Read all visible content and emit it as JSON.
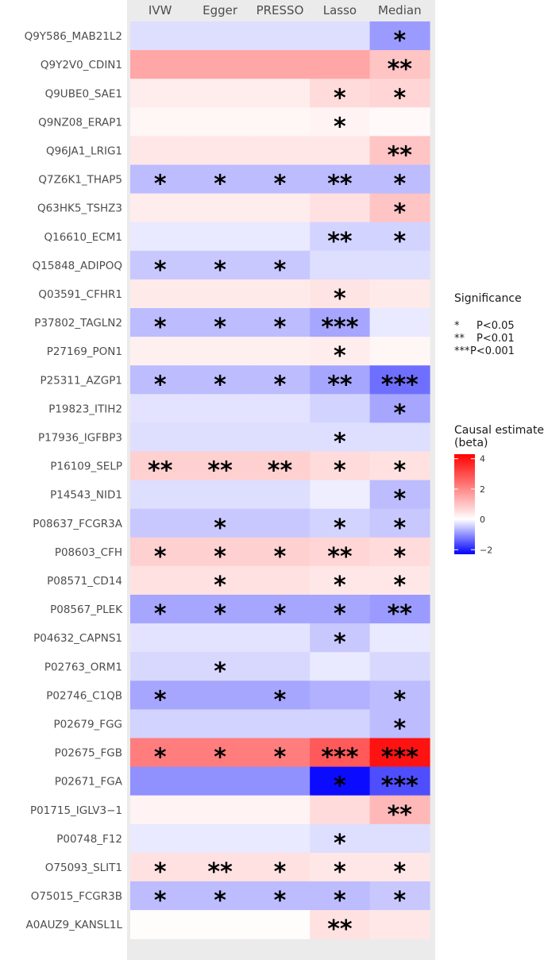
{
  "chart_data": {
    "type": "heatmap",
    "columns": [
      "IVW",
      "Egger",
      "PRESSO",
      "Lasso",
      "Median"
    ],
    "rows": [
      "Q9Y586_MAB21L2",
      "Q9Y2V0_CDIN1",
      "Q9UBE0_SAE1",
      "Q9NZ08_ERAP1",
      "Q96JA1_LRIG1",
      "Q7Z6K1_THAP5",
      "Q63HK5_TSHZ3",
      "Q16610_ECM1",
      "Q15848_ADIPOQ",
      "Q03591_CFHR1",
      "P37802_TAGLN2",
      "P27169_PON1",
      "P25311_AZGP1",
      "P19823_ITIH2",
      "P17936_IGFBP3",
      "P16109_SELP",
      "P14543_NID1",
      "P08637_FCGR3A",
      "P08603_CFH",
      "P08571_CD14",
      "P08567_PLEK",
      "P04632_CAPNS1",
      "P02763_ORM1",
      "P02746_C1QB",
      "P02679_FGG",
      "P02675_FGB",
      "P02671_FGA",
      "P01715_IGLV3−1",
      "P00748_F12",
      "O75093_SLIT1",
      "O75015_FCGR3B",
      "A0AUZ9_KANSL1L"
    ],
    "values": [
      [
        -0.3,
        -0.3,
        -0.3,
        -0.3,
        -0.9
      ],
      [
        1.5,
        1.5,
        1.5,
        1.5,
        1.0
      ],
      [
        0.3,
        0.3,
        0.3,
        0.6,
        0.7
      ],
      [
        0.15,
        0.15,
        0.15,
        0.2,
        0.1
      ],
      [
        0.4,
        0.4,
        0.4,
        0.4,
        1.0
      ],
      [
        -0.6,
        -0.6,
        -0.6,
        -0.6,
        -0.6
      ],
      [
        0.3,
        0.3,
        0.3,
        0.5,
        1.0
      ],
      [
        -0.2,
        -0.2,
        -0.2,
        -0.4,
        -0.4
      ],
      [
        -0.5,
        -0.5,
        -0.5,
        -0.3,
        -0.3
      ],
      [
        0.35,
        0.35,
        0.35,
        0.45,
        0.35
      ],
      [
        -0.6,
        -0.6,
        -0.6,
        -0.8,
        -0.2
      ],
      [
        0.25,
        0.25,
        0.25,
        0.3,
        0.15
      ],
      [
        -0.6,
        -0.6,
        -0.6,
        -0.8,
        -1.3
      ],
      [
        -0.25,
        -0.25,
        -0.25,
        -0.4,
        -0.8
      ],
      [
        -0.3,
        -0.3,
        -0.3,
        -0.3,
        -0.3
      ],
      [
        0.8,
        0.8,
        0.8,
        0.6,
        0.5
      ],
      [
        -0.3,
        -0.3,
        -0.3,
        -0.15,
        -0.6
      ],
      [
        -0.5,
        -0.5,
        -0.5,
        -0.4,
        -0.5
      ],
      [
        0.8,
        0.8,
        0.8,
        0.7,
        0.6
      ],
      [
        0.5,
        0.5,
        0.5,
        0.4,
        0.4
      ],
      [
        -0.8,
        -0.8,
        -0.8,
        -0.8,
        -0.9
      ],
      [
        -0.25,
        -0.25,
        -0.25,
        -0.5,
        -0.2
      ],
      [
        -0.35,
        -0.35,
        -0.35,
        -0.2,
        -0.35
      ],
      [
        -0.8,
        -0.8,
        -0.8,
        -0.7,
        -0.6
      ],
      [
        -0.4,
        -0.4,
        -0.4,
        -0.4,
        -0.6
      ],
      [
        2.2,
        2.2,
        2.2,
        2.8,
        4.0
      ],
      [
        -1.0,
        -1.0,
        -1.0,
        -2.2,
        -1.6
      ],
      [
        0.2,
        0.2,
        0.2,
        0.6,
        1.2
      ],
      [
        -0.2,
        -0.2,
        -0.2,
        -0.3,
        -0.3
      ],
      [
        0.5,
        0.5,
        0.5,
        0.4,
        0.4
      ],
      [
        -0.6,
        -0.6,
        -0.6,
        -0.6,
        -0.5
      ],
      [
        0.05,
        0.05,
        0.05,
        0.5,
        0.4
      ]
    ],
    "significance": [
      [
        "",
        "",
        "",
        "",
        "*"
      ],
      [
        "",
        "",
        "",
        "",
        "**"
      ],
      [
        "",
        "",
        "",
        "*",
        "*"
      ],
      [
        "",
        "",
        "",
        "*",
        ""
      ],
      [
        "",
        "",
        "",
        "",
        "**"
      ],
      [
        "*",
        "*",
        "*",
        "**",
        "*"
      ],
      [
        "",
        "",
        "",
        "",
        "*"
      ],
      [
        "",
        "",
        "",
        "**",
        "*"
      ],
      [
        "*",
        "*",
        "*",
        "",
        ""
      ],
      [
        "",
        "",
        "",
        "*",
        ""
      ],
      [
        "*",
        "*",
        "*",
        "***",
        ""
      ],
      [
        "",
        "",
        "",
        "*",
        ""
      ],
      [
        "*",
        "*",
        "*",
        "**",
        "***"
      ],
      [
        "",
        "",
        "",
        "",
        "*"
      ],
      [
        "",
        "",
        "",
        "*",
        ""
      ],
      [
        "**",
        "**",
        "**",
        "*",
        "*"
      ],
      [
        "",
        "",
        "",
        "",
        "*"
      ],
      [
        "",
        "*",
        "",
        "*",
        "*"
      ],
      [
        "*",
        "*",
        "*",
        "**",
        "*"
      ],
      [
        "",
        "*",
        "",
        "*",
        "*"
      ],
      [
        "*",
        "*",
        "*",
        "*",
        "**"
      ],
      [
        "",
        "",
        "",
        "*",
        ""
      ],
      [
        "",
        "*",
        "",
        "",
        ""
      ],
      [
        "*",
        "",
        "*",
        "",
        "*"
      ],
      [
        "",
        "",
        "",
        "",
        "*"
      ],
      [
        "*",
        "*",
        "*",
        "***",
        "***"
      ],
      [
        "",
        "",
        "",
        "*",
        "***"
      ],
      [
        "",
        "",
        "",
        "",
        "**"
      ],
      [
        "",
        "",
        "",
        "*",
        ""
      ],
      [
        "*",
        "**",
        "*",
        "*",
        "*"
      ],
      [
        "*",
        "*",
        "*",
        "*",
        "*"
      ],
      [
        "",
        "",
        "",
        "**",
        ""
      ]
    ],
    "significance_legend": {
      "title": "Significance",
      "entries": [
        {
          "symbol": "*",
          "label": "P<0.05"
        },
        {
          "symbol": "**",
          "label": "P<0.01"
        },
        {
          "symbol": "***",
          "label": "P<0.001"
        }
      ]
    },
    "color_legend": {
      "title_line1": "Causal estimate",
      "title_line2": "(beta)",
      "ticks": [
        4,
        2,
        0,
        -2
      ],
      "tick_labels": [
        "4",
        "2",
        "0",
        "−2"
      ],
      "range": [
        -2.3,
        4.3
      ],
      "colors": {
        "low": "#0000ff",
        "mid": "#ffffff",
        "high": "#ff0000"
      }
    },
    "panel_background": "#ebebeb"
  }
}
